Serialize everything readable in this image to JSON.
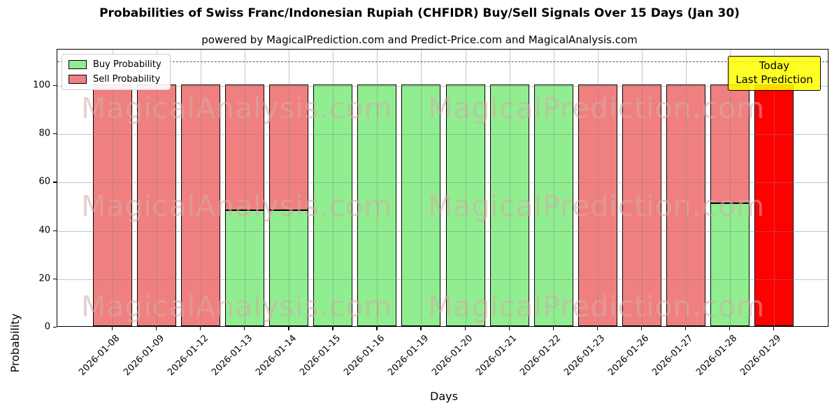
{
  "chart_data": {
    "type": "bar",
    "stacked": true,
    "title": "Probabilities of Swiss Franc/Indonesian Rupiah (CHFIDR) Buy/Sell Signals Over 15 Days (Jan 30)",
    "subtitle": "powered by MagicalPrediction.com and Predict-Price.com and MagicalAnalysis.com",
    "xlabel": "Days",
    "ylabel": "Probability",
    "ylim": [
      0,
      115
    ],
    "yticks": [
      0,
      20,
      40,
      60,
      80,
      100
    ],
    "dashed_line_y": 110,
    "grid": true,
    "legend_position": "upper-left",
    "legend": [
      {
        "label": "Buy Probability",
        "color": "#90EE90"
      },
      {
        "label": "Sell Probability",
        "color": "#F08080"
      }
    ],
    "annotation": {
      "line1": "Today",
      "line2": "Last Prediction",
      "bg_color": "#FFFF00"
    },
    "watermarks": {
      "left": "MagicalAnalysis.com",
      "right": "MagicalPrediction.com"
    },
    "colors": {
      "buy": "#90EE90",
      "sell": "#F08080",
      "last_prediction": "#FF0000",
      "bar_edge": "#000000"
    },
    "categories": [
      "2026-01-08",
      "2026-01-09",
      "2026-01-12",
      "2026-01-13",
      "2026-01-14",
      "2026-01-15",
      "2026-01-16",
      "2026-01-19",
      "2026-01-20",
      "2026-01-21",
      "2026-01-22",
      "2026-01-23",
      "2026-01-26",
      "2026-01-27",
      "2026-01-28",
      "2026-01-29"
    ],
    "series": [
      {
        "name": "Buy Probability",
        "values": [
          0,
          0,
          0,
          48,
          48,
          100,
          100,
          100,
          100,
          100,
          100,
          0,
          0,
          0,
          51,
          0
        ]
      },
      {
        "name": "Sell Probability",
        "values": [
          100,
          100,
          100,
          52,
          52,
          0,
          0,
          0,
          0,
          0,
          0,
          100,
          100,
          100,
          49,
          100
        ]
      }
    ],
    "bars": [
      {
        "date": "2026-01-08",
        "buy": 0,
        "sell": 100,
        "highlight": false
      },
      {
        "date": "2026-01-09",
        "buy": 0,
        "sell": 100,
        "highlight": false
      },
      {
        "date": "2026-01-12",
        "buy": 0,
        "sell": 100,
        "highlight": false
      },
      {
        "date": "2026-01-13",
        "buy": 48,
        "sell": 52,
        "highlight": false
      },
      {
        "date": "2026-01-14",
        "buy": 48,
        "sell": 52,
        "highlight": false
      },
      {
        "date": "2026-01-15",
        "buy": 100,
        "sell": 0,
        "highlight": false
      },
      {
        "date": "2026-01-16",
        "buy": 100,
        "sell": 0,
        "highlight": false
      },
      {
        "date": "2026-01-19",
        "buy": 100,
        "sell": 0,
        "highlight": false
      },
      {
        "date": "2026-01-20",
        "buy": 100,
        "sell": 0,
        "highlight": false
      },
      {
        "date": "2026-01-21",
        "buy": 100,
        "sell": 0,
        "highlight": false
      },
      {
        "date": "2026-01-22",
        "buy": 100,
        "sell": 0,
        "highlight": false
      },
      {
        "date": "2026-01-23",
        "buy": 0,
        "sell": 100,
        "highlight": false
      },
      {
        "date": "2026-01-26",
        "buy": 0,
        "sell": 100,
        "highlight": false
      },
      {
        "date": "2026-01-27",
        "buy": 0,
        "sell": 100,
        "highlight": false
      },
      {
        "date": "2026-01-28",
        "buy": 51,
        "sell": 49,
        "highlight": false
      },
      {
        "date": "2026-01-29",
        "buy": 0,
        "sell": 100,
        "highlight": true
      }
    ]
  }
}
